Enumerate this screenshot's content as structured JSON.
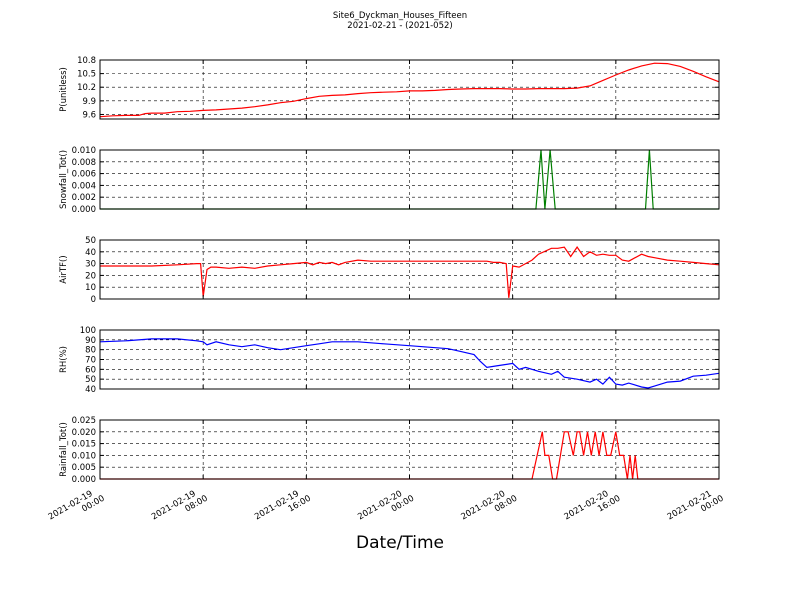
{
  "figure": {
    "title": "Site6_Dyckman_Houses_Fifteen",
    "subtitle": "2021-02-21 - (2021-052)",
    "xlabel": "Date/Time"
  },
  "chart_data": [
    {
      "type": "line",
      "ylabel": "P(unitless)",
      "ylim": [
        9.5,
        10.8
      ],
      "yticks": [
        "9.6",
        "9.9",
        "10.2",
        "10.5",
        "10.8"
      ],
      "ytick_values": [
        9.6,
        9.9,
        10.2,
        10.5,
        10.8
      ],
      "grid": true,
      "color": "#ff0000",
      "series": [
        {
          "x": [
            0,
            1,
            2,
            3,
            3.5,
            4,
            5,
            6,
            7,
            8,
            9,
            10,
            11,
            12,
            13,
            14,
            15,
            16,
            17,
            18,
            19,
            20,
            21,
            22,
            23,
            24,
            25,
            26,
            27,
            28,
            29,
            30,
            31,
            32,
            33,
            34,
            35,
            36,
            37,
            38,
            39,
            40,
            41,
            42,
            43,
            44,
            45,
            46,
            47,
            48
          ],
          "y": [
            9.55,
            9.57,
            9.58,
            9.58,
            9.62,
            9.63,
            9.63,
            9.66,
            9.67,
            9.69,
            9.7,
            9.72,
            9.74,
            9.77,
            9.81,
            9.86,
            9.89,
            9.95,
            10.0,
            10.02,
            10.03,
            10.06,
            10.08,
            10.09,
            10.1,
            10.12,
            10.12,
            10.13,
            10.15,
            10.16,
            10.17,
            10.17,
            10.17,
            10.16,
            10.16,
            10.17,
            10.17,
            10.17,
            10.18,
            10.23,
            10.35,
            10.47,
            10.58,
            10.67,
            10.73,
            10.72,
            10.66,
            10.55,
            10.43,
            10.32
          ]
        }
      ]
    },
    {
      "type": "line",
      "ylabel": "Snowfall_Tot()",
      "ylim": [
        0,
        0.01
      ],
      "yticks": [
        "0.000",
        "0.002",
        "0.004",
        "0.006",
        "0.008",
        "0.010"
      ],
      "ytick_values": [
        0,
        0.002,
        0.004,
        0.006,
        0.008,
        0.01
      ],
      "grid": true,
      "color": "#007f00",
      "series": [
        {
          "x": [
            0,
            33.8,
            34.2,
            34.5,
            34.9,
            35.3,
            42.3,
            42.6,
            42.9,
            48
          ],
          "y": [
            0,
            0,
            0.01,
            0,
            0.01,
            0,
            0,
            0.01,
            0,
            0
          ]
        }
      ]
    },
    {
      "type": "line",
      "ylabel": "AirTF()",
      "ylim": [
        0,
        50
      ],
      "yticks": [
        "0",
        "10",
        "20",
        "30",
        "40",
        "50"
      ],
      "ytick_values": [
        0,
        10,
        20,
        30,
        40,
        50
      ],
      "grid": true,
      "color": "#ff0000",
      "series": [
        {
          "x": [
            0,
            2,
            4,
            6,
            7.5,
            7.8,
            8.0,
            8.3,
            8.6,
            9,
            10,
            11,
            12,
            13,
            14,
            15,
            16,
            16.5,
            17,
            17.5,
            18,
            18.5,
            19,
            20,
            21,
            22,
            24,
            26,
            28,
            29,
            30,
            30.5,
            31,
            31.5,
            31.7,
            32,
            32.5,
            33,
            33.5,
            34,
            35,
            35.5,
            36,
            36.5,
            37,
            37.5,
            38,
            38.5,
            39,
            39.5,
            40,
            40.5,
            41,
            42,
            42.5,
            43,
            44,
            45,
            46,
            47,
            48
          ],
          "y": [
            28,
            28,
            28,
            29,
            30,
            30,
            2,
            25,
            27,
            27,
            26,
            27,
            26,
            28,
            29,
            30,
            31,
            29,
            31,
            30,
            31,
            29,
            31,
            33,
            32,
            32,
            32,
            32,
            32,
            32,
            32,
            31,
            31,
            30,
            1,
            28,
            27,
            30,
            33,
            38,
            43,
            43,
            44,
            36,
            44,
            36,
            40,
            37,
            38,
            37,
            37,
            33,
            32,
            38,
            36,
            35,
            33,
            32,
            31,
            30,
            29
          ]
        }
      ]
    },
    {
      "type": "line",
      "ylabel": "RH(%)",
      "ylim": [
        40,
        100
      ],
      "yticks": [
        "40",
        "50",
        "60",
        "70",
        "80",
        "90",
        "100"
      ],
      "ytick_values": [
        40,
        50,
        60,
        70,
        80,
        90,
        100
      ],
      "grid": true,
      "color": "#0000ff",
      "series": [
        {
          "x": [
            0,
            2,
            4,
            6,
            7.5,
            8,
            8.3,
            9,
            10,
            11,
            12,
            13,
            14,
            15,
            16,
            17,
            18,
            20,
            22,
            24,
            26,
            27,
            28,
            29,
            29.5,
            30,
            31,
            32,
            32.5,
            33,
            34,
            35,
            35.5,
            36,
            37,
            38,
            38.5,
            39,
            39.5,
            40,
            40.5,
            41,
            42,
            42.5,
            43,
            44,
            45,
            46,
            47,
            48
          ],
          "y": [
            88,
            89,
            91,
            91,
            89,
            88,
            85,
            88,
            85,
            83,
            85,
            82,
            80,
            82,
            84,
            86,
            88,
            88,
            86,
            84,
            82,
            81,
            78,
            75,
            68,
            62,
            64,
            66,
            60,
            62,
            58,
            55,
            58,
            52,
            50,
            47,
            50,
            45,
            52,
            45,
            44,
            46,
            42,
            41,
            43,
            47,
            48,
            53,
            54,
            56
          ]
        }
      ]
    },
    {
      "type": "line",
      "ylabel": "Rainfall_Tot()",
      "ylim": [
        0,
        0.025
      ],
      "yticks": [
        "0.000",
        "0.005",
        "0.010",
        "0.015",
        "0.020",
        "0.025"
      ],
      "ytick_values": [
        0,
        0.005,
        0.01,
        0.015,
        0.02,
        0.025
      ],
      "grid": true,
      "color": "#ff0000",
      "series": [
        {
          "x": [
            0,
            33.5,
            34.3,
            34.5,
            34.8,
            35.1,
            35.4,
            36.0,
            36.3,
            36.7,
            37.0,
            37.2,
            37.5,
            37.8,
            38.1,
            38.4,
            38.7,
            39.0,
            39.3,
            39.6,
            40.0,
            40.3,
            40.6,
            40.9,
            41.1,
            41.3,
            41.5,
            41.7,
            42.0,
            48
          ],
          "y": [
            0,
            0,
            0.02,
            0.01,
            0.01,
            0.0,
            0.0,
            0.02,
            0.02,
            0.01,
            0.02,
            0.02,
            0.01,
            0.02,
            0.01,
            0.02,
            0.01,
            0.02,
            0.01,
            0.01,
            0.02,
            0.01,
            0.01,
            0.0,
            0.01,
            0.0,
            0.01,
            0.0,
            0.0,
            0
          ]
        }
      ]
    }
  ],
  "x_axis": {
    "tick_values": [
      0,
      8,
      16,
      24,
      32,
      40,
      48
    ],
    "tick_labels": [
      [
        "2021-02-19",
        "00:00"
      ],
      [
        "2021-02-19",
        "08:00"
      ],
      [
        "2021-02-19",
        "16:00"
      ],
      [
        "2021-02-20",
        "00:00"
      ],
      [
        "2021-02-20",
        "08:00"
      ],
      [
        "2021-02-20",
        "16:00"
      ],
      [
        "2021-02-21",
        "00:00"
      ]
    ],
    "range": [
      0,
      48
    ]
  }
}
